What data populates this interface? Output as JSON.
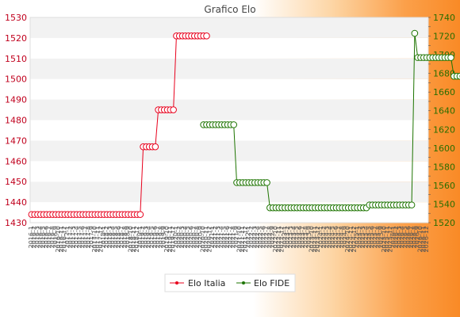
{
  "chart_data": {
    "type": "line",
    "title": "Grafico Elo",
    "x_tick_labels": [
      "2016-1",
      "2016-2",
      "2016-3",
      "2016-4",
      "2016-5",
      "2016-6",
      "2016-7",
      "2016-8",
      "2016-9",
      "2016-10",
      "2016-11",
      "2016-12",
      "2017-1",
      "2017-2",
      "2017-3",
      "2017-4",
      "2017-5",
      "2017-6",
      "2017-7",
      "2017-8",
      "2017-9",
      "2017-10",
      "2017-11",
      "2017-12",
      "2018-1",
      "2018-2",
      "2018-3",
      "2018-4",
      "2018-5",
      "2018-6",
      "2018-7",
      "2018-8",
      "2018-9",
      "2018-10",
      "2018-11",
      "2018-12",
      "2019-1",
      "2019-2",
      "2019-3",
      "2019-4",
      "2019-5",
      "2019-6",
      "2019-7",
      "2019-8",
      "2019-9",
      "2019-10",
      "2019-11",
      "2019-12",
      "2020-1",
      "2020-2",
      "2020-3",
      "2020-4",
      "2020-5",
      "2020-6",
      "2020-7",
      "2020-8",
      "2020-9",
      "2020-10",
      "2020-11",
      "2020-12",
      "2021-1",
      "2021-2",
      "2021-3",
      "2021-4",
      "2021-5",
      "2021-6",
      "2021-7",
      "2021-8",
      "2021-9",
      "2021-10",
      "2021-11",
      "2021-12",
      "2022-1",
      "2022-2",
      "2022-3",
      "2022-4",
      "2022-5",
      "2022-6",
      "2022-7",
      "2022-8",
      "2022-9",
      "2022-10",
      "2022-11",
      "2022-12",
      "2023-1",
      "2023-2",
      "2023-3",
      "2023-4",
      "2023-5",
      "2023-6",
      "2023-7",
      "2023-8",
      "2023-9",
      "2023-10",
      "2023-11",
      "2023-12",
      "2024-1",
      "2024-2",
      "2024-3",
      "2024-4",
      "2024-5",
      "2024-6",
      "2024-7",
      "2024-8",
      "2024-9",
      "2024-10",
      "2024-11",
      "2024-12",
      "2025-1",
      "2025-2",
      "2025-3",
      "2025-4",
      "2025-5",
      "2025-6",
      "2025-7",
      "2025-8",
      "2025-9",
      "2025-10",
      "2025-11",
      "2025-12",
      "2026-1",
      "2026-2",
      "2026-3",
      "2026-4",
      "2026-5",
      "2026-6",
      "2026-7",
      "2026-8",
      "2026-9",
      "2026-10",
      "2026-11",
      "2026-12"
    ],
    "y_left": {
      "range": [
        1430,
        1530
      ],
      "ticks": [
        1430,
        1440,
        1450,
        1460,
        1470,
        1480,
        1490,
        1500,
        1510,
        1520,
        1530
      ]
    },
    "y_right": {
      "range": [
        1520,
        1740
      ],
      "ticks": [
        1520,
        1540,
        1560,
        1580,
        1600,
        1620,
        1640,
        1660,
        1680,
        1700,
        1720,
        1740
      ]
    },
    "grid": "horizontal-bands",
    "legend_position": "bottom",
    "series": [
      {
        "name": "Elo Italia",
        "axis": "left",
        "color": "#e8001c",
        "points": [
          {
            "range": [
              0,
              36
            ],
            "value": 1434
          },
          {
            "range": [
              37,
              41
            ],
            "value": 1467
          },
          {
            "range": [
              42,
              47
            ],
            "value": 1485
          },
          {
            "range": [
              48,
              58
            ],
            "value": 1521
          }
        ]
      },
      {
        "name": "Elo FIDE",
        "axis": "right",
        "color": "#1d7400",
        "points": [
          {
            "range": [
              57,
              67
            ],
            "value": 1625
          },
          {
            "range": [
              68,
              78
            ],
            "value": 1563
          },
          {
            "range": [
              79,
              111
            ],
            "value": 1536
          },
          {
            "range": [
              112,
              126
            ],
            "value": 1539
          },
          {
            "range": [
              127,
              127
            ],
            "value": 1723
          },
          {
            "range": [
              128,
              139
            ],
            "value": 1697
          },
          {
            "range": [
              140,
              148
            ],
            "value": 1677
          }
        ]
      }
    ]
  }
}
